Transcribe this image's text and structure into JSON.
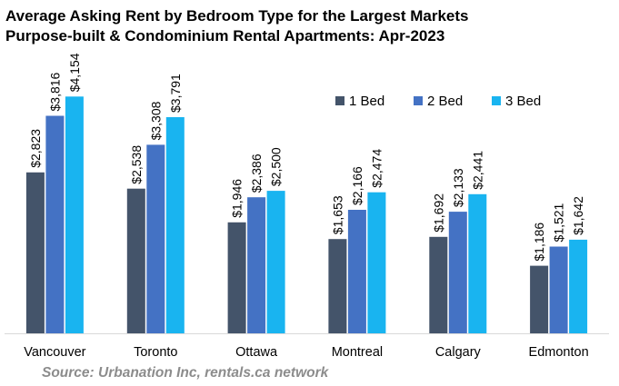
{
  "chart_data": {
    "type": "bar",
    "title_line1": "Average Asking Rent by Bedroom Type for the Largest Markets",
    "title_line2": "Purpose-built & Condominium Rental Apartments: Apr-2023",
    "source": "Source: Urbanation Inc, rentals.ca network",
    "categories": [
      "Vancouver",
      "Toronto",
      "Ottawa",
      "Montreal",
      "Calgary",
      "Edmonton"
    ],
    "series": [
      {
        "name": "1 Bed",
        "color": "#44546a",
        "values": [
          2823,
          2538,
          1946,
          1653,
          1692,
          1186
        ],
        "labels": [
          "$2,823",
          "$2,538",
          "$1,946",
          "$1,653",
          "$1,692",
          "$1,186"
        ]
      },
      {
        "name": "2 Bed",
        "color": "#4472c4",
        "values": [
          3816,
          3308,
          2386,
          2166,
          2133,
          1521
        ],
        "labels": [
          "$3,816",
          "$3,308",
          "$2,386",
          "$2,166",
          "$2,133",
          "$1,521"
        ]
      },
      {
        "name": "3 Bed",
        "color": "#19b4f0",
        "values": [
          4154,
          3791,
          2500,
          2474,
          2441,
          1642
        ],
        "labels": [
          "$4,154",
          "$3,791",
          "$2,500",
          "$2,474",
          "$2,441",
          "$1,642"
        ]
      }
    ],
    "ylim": [
      0,
      4500
    ],
    "y_axis_visible": false,
    "grid": false,
    "legend_position": "top-right",
    "axis_color": "#d9d9d9"
  }
}
